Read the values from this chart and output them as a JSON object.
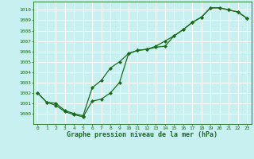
{
  "title": "Graphe pression niveau de la mer (hPa)",
  "bg_color": "#c8f0f0",
  "grid_color": "#ffffff",
  "line_color": "#1a6b1a",
  "xlim": [
    -0.5,
    23.5
  ],
  "ylim": [
    999.0,
    1010.8
  ],
  "xticks": [
    0,
    1,
    2,
    3,
    4,
    5,
    6,
    7,
    8,
    9,
    10,
    11,
    12,
    13,
    14,
    15,
    16,
    17,
    18,
    19,
    20,
    21,
    22,
    23
  ],
  "yticks": [
    1000,
    1001,
    1002,
    1003,
    1004,
    1005,
    1006,
    1007,
    1008,
    1009,
    1010
  ],
  "upper_x": [
    0,
    1,
    2,
    3,
    4,
    5,
    6,
    7,
    8,
    9,
    10,
    11,
    12,
    13,
    14,
    15,
    16,
    17,
    18,
    19,
    20,
    21,
    22,
    23
  ],
  "upper_y": [
    1002.0,
    1001.1,
    1001.0,
    1000.3,
    1000.0,
    999.8,
    1002.5,
    1003.2,
    1004.4,
    1005.0,
    1005.8,
    1006.1,
    1006.2,
    1006.5,
    1007.0,
    1007.5,
    1008.1,
    1008.8,
    1009.3,
    1010.2,
    1010.2,
    1010.0,
    1009.8,
    1009.2
  ],
  "lower_x": [
    0,
    1,
    2,
    3,
    4,
    5,
    6,
    7,
    8,
    9,
    10,
    11,
    12,
    13,
    14,
    15,
    16,
    17,
    18,
    19,
    20,
    21,
    22,
    23
  ],
  "lower_y": [
    1002.0,
    1001.1,
    1000.8,
    1000.2,
    999.9,
    999.7,
    1001.2,
    1001.4,
    1002.0,
    1003.0,
    1005.8,
    1006.1,
    1006.2,
    1006.4,
    1006.5,
    1007.5,
    1008.1,
    1008.8,
    1009.3,
    1010.2,
    1010.2,
    1010.0,
    1009.8,
    1009.2
  ]
}
